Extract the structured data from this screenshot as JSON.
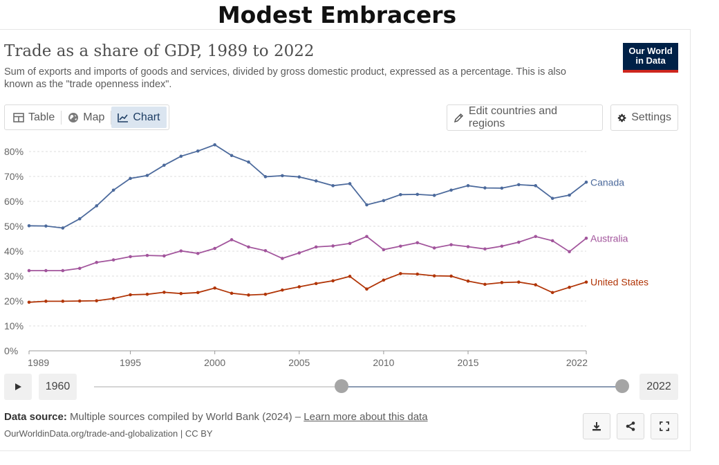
{
  "heading": "Modest Embracers",
  "title": "Trade as a share of GDP, 1989 to 2022",
  "subtitle": "Sum of exports and imports of goods and services, divided by gross domestic product, expressed as a percentage. This is also known as the \"trade openness index\".",
  "logo": {
    "line1": "Our World",
    "line2": "in Data",
    "bg": "#002147",
    "accent": "#ce261e"
  },
  "tabs": [
    {
      "label": "Table",
      "icon": "table-icon"
    },
    {
      "label": "Map",
      "icon": "globe-icon"
    },
    {
      "label": "Chart",
      "icon": "line-chart-icon",
      "active": true
    }
  ],
  "buttons": {
    "edit": "Edit countries and regions",
    "settings": "Settings"
  },
  "timeline": {
    "start_year": "1960",
    "end_year": "2022",
    "start_fraction": 0.469,
    "end_fraction": 1.0
  },
  "source": {
    "label": "Data source:",
    "text": "Multiple sources compiled by World Bank (2024) –",
    "link": "Learn more about this data",
    "url": "OurWorldinData.org/trade-and-globalization | CC BY"
  },
  "chart_data": {
    "type": "line",
    "x_ticks": [
      1989,
      1995,
      2000,
      2005,
      2010,
      2015,
      2022
    ],
    "y_ticks": [
      0,
      10,
      20,
      30,
      40,
      50,
      60,
      70,
      80
    ],
    "y_tick_labels": [
      "0%",
      "10%",
      "20%",
      "30%",
      "40%",
      "50%",
      "60%",
      "70%",
      "80%"
    ],
    "xlim": [
      1989,
      2022
    ],
    "ylim": [
      0,
      85
    ],
    "grid": "horizontal dotted",
    "legend": "inline-right",
    "series": [
      {
        "name": "Canada",
        "color": "#4c6a9c",
        "x": [
          1989,
          1990,
          1991,
          1992,
          1993,
          1994,
          1995,
          1996,
          1997,
          1998,
          1999,
          2000,
          2001,
          2002,
          2003,
          2004,
          2005,
          2006,
          2007,
          2008,
          2009,
          2010,
          2011,
          2012,
          2013,
          2014,
          2015,
          2016,
          2017,
          2018,
          2019,
          2020,
          2021,
          2022
        ],
        "y": [
          50.2,
          50.1,
          49.3,
          53,
          58.2,
          64.5,
          69.2,
          70.4,
          74.5,
          78.1,
          80.2,
          82.7,
          78.4,
          75.8,
          69.9,
          70.3,
          69.8,
          68.2,
          66.3,
          67.1,
          58.6,
          60.3,
          62.7,
          62.8,
          62.4,
          64.5,
          66.3,
          65.4,
          65.3,
          66.7,
          66.3,
          61.2,
          62.5,
          67.7
        ]
      },
      {
        "name": "Australia",
        "color": "#a2559c",
        "x": [
          1989,
          1990,
          1991,
          1992,
          1993,
          1994,
          1995,
          1996,
          1997,
          1998,
          1999,
          2000,
          2001,
          2002,
          2003,
          2004,
          2005,
          2006,
          2007,
          2008,
          2009,
          2010,
          2011,
          2012,
          2013,
          2014,
          2015,
          2016,
          2017,
          2018,
          2019,
          2020,
          2021,
          2022
        ],
        "y": [
          32.2,
          32.2,
          32.2,
          33.1,
          35.5,
          36.5,
          37.8,
          38.3,
          38.1,
          40.1,
          39.1,
          41.1,
          44.6,
          41.7,
          40.2,
          37.1,
          39.3,
          41.7,
          42.1,
          43.1,
          45.9,
          40.6,
          42,
          43.4,
          41.3,
          42.6,
          41.8,
          40.9,
          42,
          43.6,
          45.9,
          44.2,
          39.8,
          45.2
        ]
      },
      {
        "name": "United States",
        "color": "#b13507",
        "x": [
          1989,
          1990,
          1991,
          1992,
          1993,
          1994,
          1995,
          1996,
          1997,
          1998,
          1999,
          2000,
          2001,
          2002,
          2003,
          2004,
          2005,
          2006,
          2007,
          2008,
          2009,
          2010,
          2011,
          2012,
          2013,
          2014,
          2015,
          2016,
          2017,
          2018,
          2019,
          2020,
          2021,
          2022
        ],
        "y": [
          19.5,
          19.9,
          19.9,
          20,
          20.1,
          21,
          22.5,
          22.7,
          23.5,
          23,
          23.4,
          25.2,
          23.1,
          22.4,
          22.7,
          24.4,
          25.7,
          27,
          28.1,
          29.9,
          24.8,
          28.4,
          31,
          30.8,
          30.1,
          30,
          28,
          26.7,
          27.4,
          27.6,
          26.5,
          23.4,
          25.5,
          27.6
        ]
      }
    ]
  }
}
